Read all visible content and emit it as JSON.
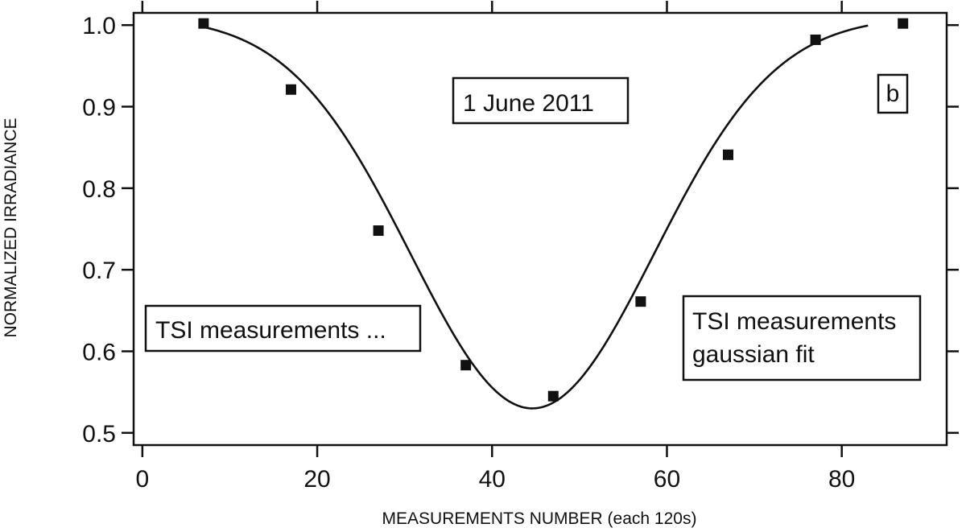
{
  "chart_data": {
    "type": "scatter",
    "xlabel": "MEASUREMENTS NUMBER (each 120s)",
    "ylabel": "NORMALIZED IRRADIANCE",
    "xlim": [
      -1,
      92
    ],
    "ylim": [
      0.485,
      1.015
    ],
    "x_ticks": [
      "0",
      "20",
      "40",
      "60",
      "80"
    ],
    "y_ticks": [
      "0.5",
      "0.6",
      "0.7",
      "0.8",
      "0.9",
      "1.0"
    ],
    "grid": false,
    "series": [
      {
        "kind": "points",
        "marker": "square",
        "x": [
          7,
          17,
          27,
          37,
          47,
          57,
          67,
          77,
          87
        ],
        "y": [
          1.002,
          0.921,
          0.748,
          0.583,
          0.545,
          0.661,
          0.841,
          0.982,
          1.002
        ]
      },
      {
        "kind": "line",
        "fit": "gaussian",
        "x_range": [
          7,
          83
        ],
        "params": {
          "base": 1.01,
          "amplitude": 0.48,
          "center": 44.6,
          "sigma": 13.9
        }
      }
    ],
    "annotations": [
      {
        "id": "date",
        "lines": [
          "1 June 2011"
        ]
      },
      {
        "id": "panel",
        "lines": [
          "b"
        ]
      },
      {
        "id": "legend-points",
        "lines": [
          "TSI measurements ..."
        ]
      },
      {
        "id": "legend-line",
        "lines": [
          "TSI measurements",
          "gaussian fit"
        ]
      }
    ]
  }
}
